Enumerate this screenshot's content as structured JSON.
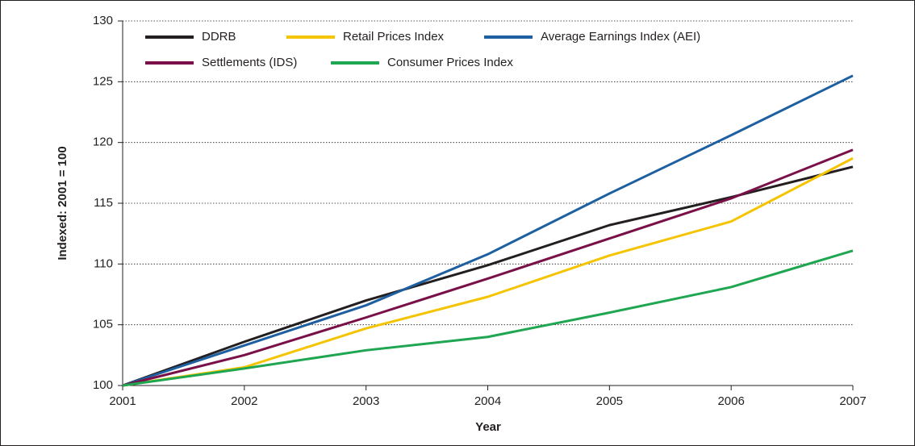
{
  "chart_data": {
    "type": "line",
    "x_label": "Year",
    "y_label": "Indexed: 2001 = 100",
    "x": [
      2001,
      2002,
      2003,
      2004,
      2005,
      2006,
      2007
    ],
    "xlim": [
      2001,
      2007
    ],
    "xticks": [
      2001,
      2002,
      2003,
      2004,
      2005,
      2006,
      2007
    ],
    "ylim": [
      100,
      130
    ],
    "yticks": [
      100,
      105,
      110,
      115,
      120,
      125,
      130
    ],
    "grid": true,
    "legend": "upper left",
    "series": [
      {
        "name": "DDRB",
        "color": "#231f20",
        "values": [
          100,
          103.6,
          107.0,
          109.9,
          113.2,
          115.5,
          118.0
        ]
      },
      {
        "name": "Retail Prices Index",
        "color": "#f5c400",
        "values": [
          100,
          101.5,
          104.7,
          107.3,
          110.7,
          113.5,
          118.7
        ]
      },
      {
        "name": "Average Earnings Index (AEI)",
        "color": "#1d5fa0",
        "values": [
          100,
          103.3,
          106.6,
          110.8,
          115.8,
          120.6,
          125.5
        ]
      },
      {
        "name": "Settlements (IDS)",
        "color": "#7a1048",
        "values": [
          100,
          102.5,
          105.6,
          108.8,
          112.1,
          115.4,
          119.4
        ]
      },
      {
        "name": "Consumer Prices Index",
        "color": "#1fa651",
        "values": [
          100,
          101.4,
          102.9,
          104.0,
          106.0,
          108.1,
          111.1
        ]
      }
    ]
  }
}
